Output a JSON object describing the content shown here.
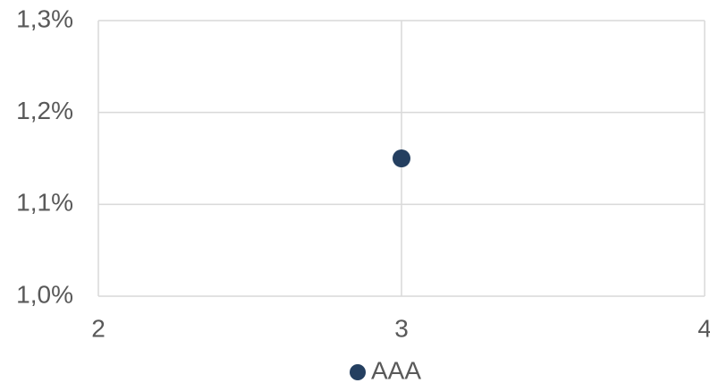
{
  "chart_data": {
    "type": "scatter",
    "series": [
      {
        "name": "AAA",
        "color": "#243f60",
        "x": [
          3
        ],
        "values": [
          1.15
        ]
      }
    ],
    "xlim": [
      2,
      4
    ],
    "xticks": [
      2,
      3,
      4
    ],
    "ylim": [
      1.0,
      1.3
    ],
    "yticks": [
      {
        "value": 1.0,
        "label": "1,0%"
      },
      {
        "value": 1.1,
        "label": "1,1%"
      },
      {
        "value": 1.2,
        "label": "1,2%"
      },
      {
        "value": 1.3,
        "label": "1,3%"
      }
    ],
    "grid": true,
    "legend": "bottom"
  }
}
